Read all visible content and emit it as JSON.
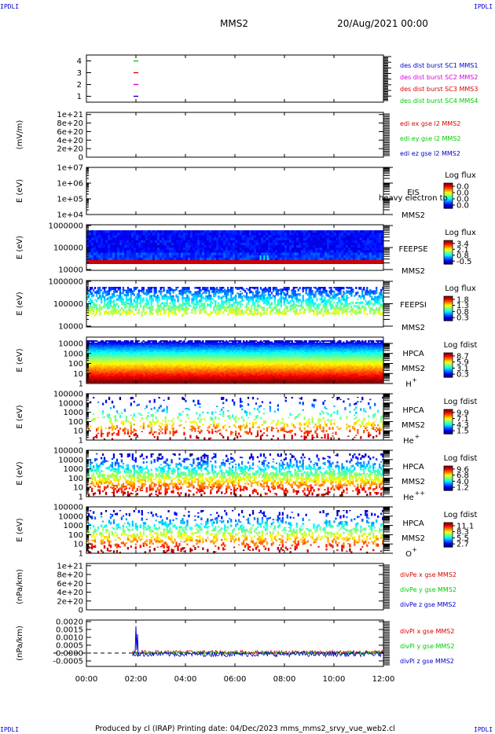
{
  "corner_text": "IPDLI",
  "header": {
    "spacecraft": "MMS2",
    "date": "20/Aug/2021 00:00"
  },
  "footer": "Produced by cl (IRAP)   Printing date: 04/Dec/2023   mms_mms2_srvy_vue_web2.cl",
  "time_axis": {
    "ticks": [
      "00:00",
      "02:00",
      "04:00",
      "06:00",
      "08:00",
      "10:00",
      "12:00"
    ]
  },
  "colors": {
    "red": "#dd0000",
    "green": "#00cc00",
    "blue": "#0000cc",
    "magenta": "#dd00dd"
  },
  "chart_data": [
    {
      "type": "scatter",
      "panel": "burst",
      "y_ticks": [
        "1",
        "2",
        "3",
        "4"
      ],
      "ylim": [
        0.5,
        4.5
      ],
      "series": [
        {
          "name": "des dist burst SC1 MMS1",
          "color": "#0000cc",
          "x": [
            2.0
          ],
          "y": [
            1
          ]
        },
        {
          "name": "des dist burst SC2 MMS2",
          "color": "#dd00dd",
          "x": [
            2.0
          ],
          "y": [
            2
          ]
        },
        {
          "name": "des dist burst SC3 MMS3",
          "color": "#dd0000",
          "x": [
            2.0
          ],
          "y": [
            3
          ]
        },
        {
          "name": "des dist burst SC4 MMS4",
          "color": "#00cc00",
          "x": [
            2.0
          ],
          "y": [
            4
          ]
        }
      ]
    },
    {
      "type": "line",
      "panel": "edi",
      "ylabel": "(mV/m)",
      "y_ticks": [
        "0",
        "2e+20",
        "4e+20",
        "6e+20",
        "8e+20",
        "1e+21"
      ],
      "ylim": [
        0,
        1.05e+21
      ],
      "series": [
        {
          "name": "edi ex gse l2 MMS2",
          "color": "#dd0000"
        },
        {
          "name": "edi ey gse l2 MMS2",
          "color": "#00cc00"
        },
        {
          "name": "edi ez gse l2 MMS2",
          "color": "#0000cc"
        }
      ]
    },
    {
      "type": "heatmap",
      "panel": "eis",
      "ylabel": "E (eV)",
      "y_ticks": [
        "1e+04",
        "1e+05",
        "1e+06",
        "1e+07"
      ],
      "instrument": "EIS",
      "overlay": "heavy electron to",
      "spacecraft": "MMS2",
      "cbar_title": "Log flux",
      "cbar_ticks": [
        "0.0",
        "0.0",
        "0.0",
        "0.0"
      ]
    },
    {
      "type": "heatmap",
      "panel": "feepse",
      "ylabel": "E (eV)",
      "y_ticks": [
        "10000",
        "100000",
        "1000000"
      ],
      "instrument": "FEEPSE",
      "spacecraft": "MMS2",
      "cbar_title": "Log flux",
      "cbar_ticks": [
        "3.4",
        "2.1",
        "0.8",
        "-0.5"
      ]
    },
    {
      "type": "heatmap",
      "panel": "feepsi",
      "ylabel": "E (eV)",
      "y_ticks": [
        "10000",
        "100000",
        "1000000"
      ],
      "instrument": "FEEPSI",
      "spacecraft": "MMS2",
      "cbar_title": "Log flux",
      "cbar_ticks": [
        "1.8",
        "1.3",
        "0.8",
        "0.3"
      ]
    },
    {
      "type": "heatmap",
      "panel": "hpca_h",
      "ylabel": "E (eV)",
      "y_ticks": [
        "1",
        "10",
        "100",
        "1000",
        "10000"
      ],
      "instrument": "HPCA",
      "spacecraft": "MMS2",
      "species": "H",
      "species_sup": "+",
      "cbar_title": "Log fdist",
      "cbar_ticks": [
        "8.7",
        "5.9",
        "3.1",
        "0.3"
      ]
    },
    {
      "type": "heatmap",
      "panel": "hpca_he",
      "ylabel": "E (eV)",
      "y_ticks": [
        "1",
        "10",
        "100",
        "1000",
        "10000",
        "100000"
      ],
      "instrument": "HPCA",
      "spacecraft": "MMS2",
      "species": "He",
      "species_sup": "+",
      "cbar_title": "Log fdist",
      "cbar_ticks": [
        "9.9",
        "7.1",
        "4.3",
        "1.5"
      ]
    },
    {
      "type": "heatmap",
      "panel": "hpca_hepp",
      "ylabel": "E (eV)",
      "y_ticks": [
        "1",
        "10",
        "100",
        "1000",
        "10000",
        "100000"
      ],
      "instrument": "HPCA",
      "spacecraft": "MMS2",
      "species": "He",
      "species_sup": "++",
      "cbar_title": "Log fdist",
      "cbar_ticks": [
        "9.6",
        "6.8",
        "4.0",
        "1.2"
      ]
    },
    {
      "type": "heatmap",
      "panel": "hpca_o",
      "ylabel": "E (eV)",
      "y_ticks": [
        "1",
        "10",
        "100",
        "1000",
        "10000",
        "100000"
      ],
      "instrument": "HPCA",
      "spacecraft": "MMS2",
      "species": "O",
      "species_sup": "+",
      "cbar_title": "Log fdist",
      "cbar_ticks": [
        "11.1",
        "8.3",
        "5.5",
        "2.7"
      ]
    },
    {
      "type": "line",
      "panel": "divpe",
      "ylabel": "(nPa/km)",
      "y_ticks": [
        "0",
        "2e+20",
        "4e+20",
        "6e+20",
        "8e+20",
        "1e+21"
      ],
      "ylim": [
        0,
        1.05e+21
      ],
      "series": [
        {
          "name": "divPe x gse MMS2",
          "color": "#dd0000"
        },
        {
          "name": "divPe y gse MMS2",
          "color": "#00cc00"
        },
        {
          "name": "divPe z gse MMS2",
          "color": "#0000cc"
        }
      ]
    },
    {
      "type": "line",
      "panel": "divpi",
      "ylabel": "(nPa/km)",
      "y_ticks": [
        "-0.0005",
        "0.0000",
        "0.0005",
        "0.0010",
        "0.0015",
        "0.0020"
      ],
      "ylim": [
        -0.00085,
        0.0021
      ],
      "x_start": 1.85,
      "spike": {
        "x": 2.0,
        "y": 0.0017
      },
      "series": [
        {
          "name": "divPi x gse MMS2",
          "color": "#dd0000"
        },
        {
          "name": "divPi y gse MMS2",
          "color": "#00cc00"
        },
        {
          "name": "divPi z gse MMS2",
          "color": "#0000cc"
        }
      ]
    }
  ]
}
